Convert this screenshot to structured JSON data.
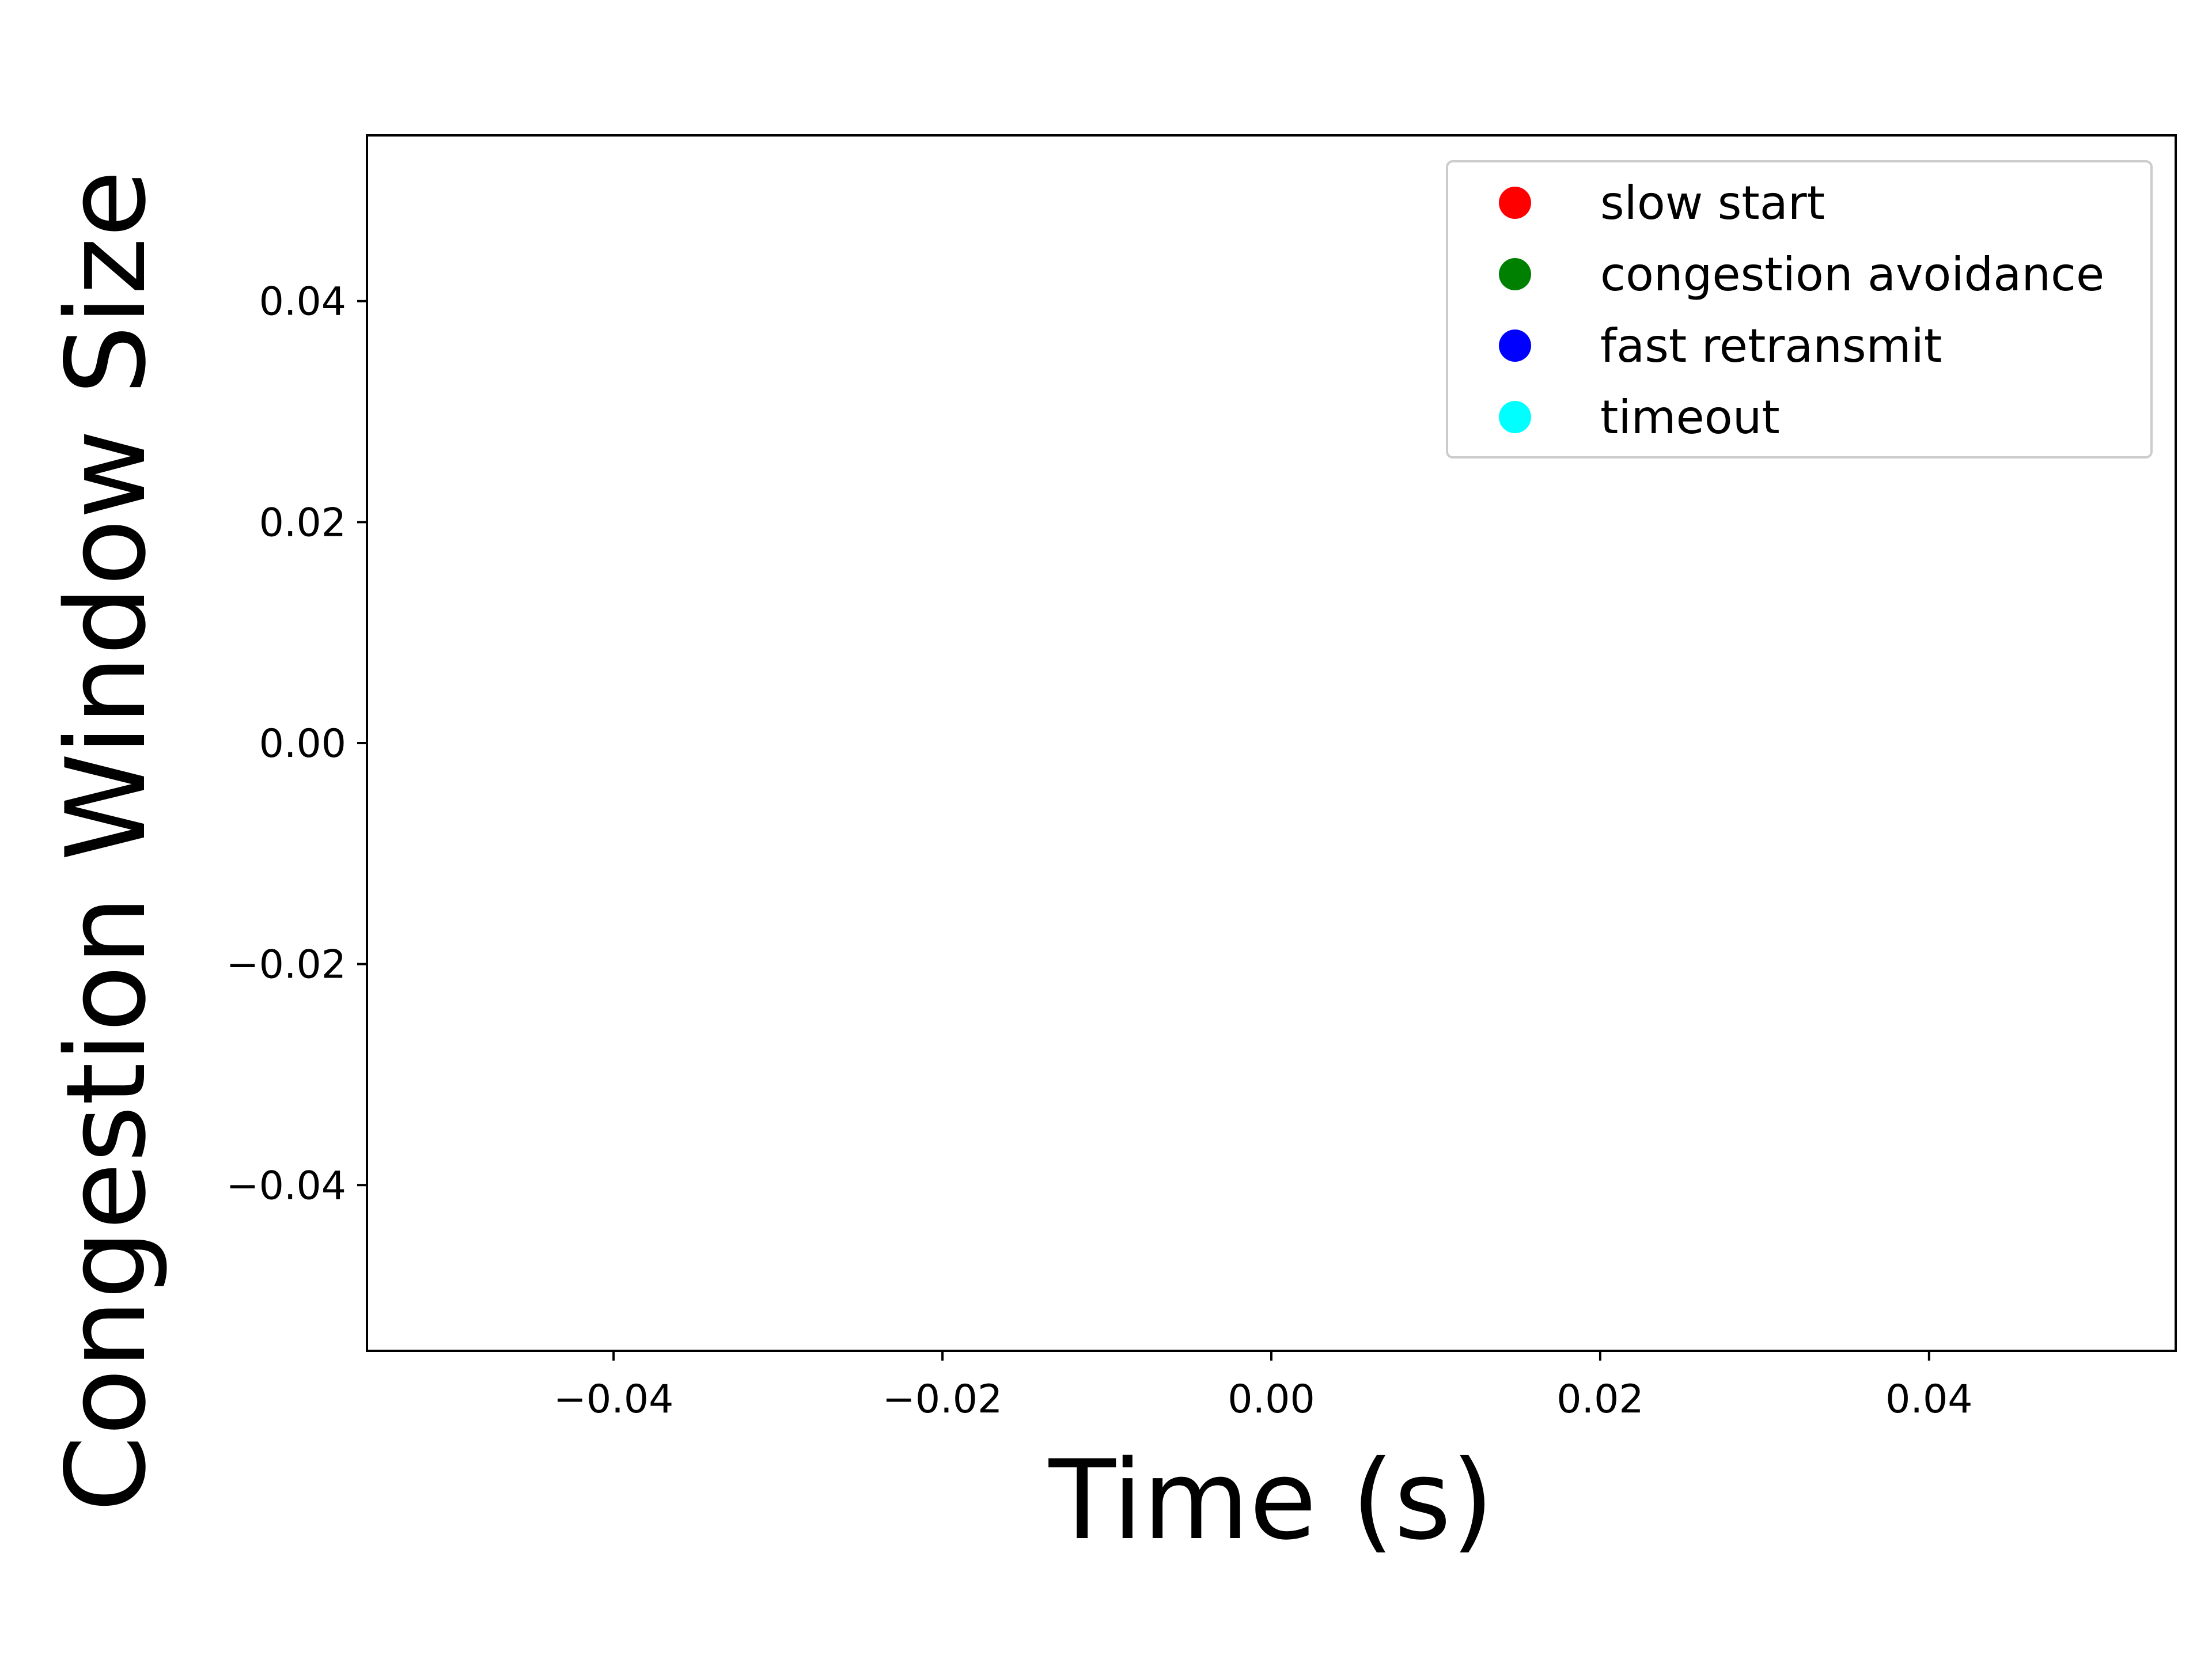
{
  "chart_data": {
    "type": "scatter",
    "xlabel": "Time (s)",
    "ylabel": "Congestion Window Size",
    "xlim": [
      -0.055,
      0.055
    ],
    "ylim": [
      -0.055,
      0.055
    ],
    "x_ticks": [
      "−0.04",
      "−0.02",
      "0.00",
      "0.02",
      "0.04"
    ],
    "x_tick_values": [
      -0.04,
      -0.02,
      0.0,
      0.02,
      0.04
    ],
    "y_ticks": [
      "−0.04",
      "−0.02",
      "0.00",
      "0.02",
      "0.04"
    ],
    "y_tick_values": [
      -0.04,
      -0.02,
      0.0,
      0.02,
      0.04
    ],
    "grid": false,
    "legend_position": "top-right",
    "series": [
      {
        "name": "slow start",
        "color": "#ff0000",
        "x": [],
        "y": []
      },
      {
        "name": "congestion avoidance",
        "color": "#008000",
        "x": [],
        "y": []
      },
      {
        "name": "fast retransmit",
        "color": "#0000ff",
        "x": [],
        "y": []
      },
      {
        "name": "timeout",
        "color": "#00ffff",
        "x": [],
        "y": []
      }
    ]
  }
}
